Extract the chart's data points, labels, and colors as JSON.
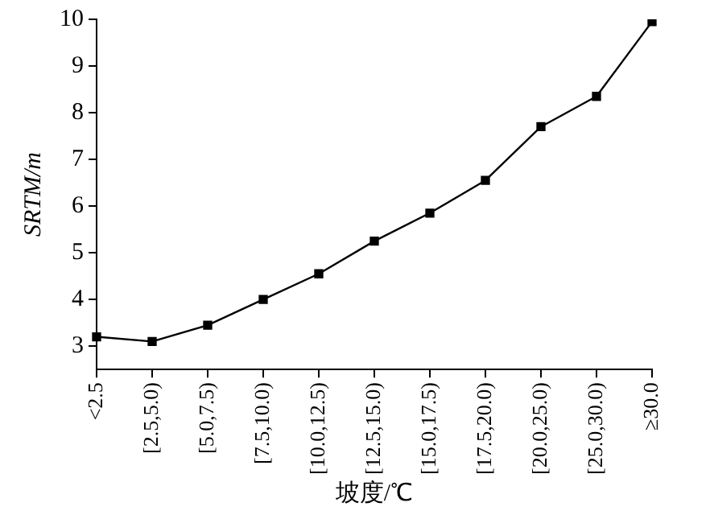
{
  "chart_data": {
    "type": "line",
    "xlabel": "坡度/℃",
    "ylabel": "SRTM/m",
    "categories": [
      "<2.5",
      "[2.5,5.0)",
      "[5.0,7.5)",
      "[7.5,10.0)",
      "[10.0,12.5)",
      "[12.5,15.0)",
      "[15.0,17.5)",
      "[17.5,20.0)",
      "[20.0,25.0)",
      "[25.0,30.0)",
      "≥30.0"
    ],
    "values": [
      3.2,
      3.1,
      3.45,
      4.0,
      4.55,
      5.25,
      5.85,
      6.55,
      7.7,
      8.35,
      9.95
    ],
    "color": "#000000",
    "marker": "square",
    "line_style": "solid",
    "grid": false,
    "legend": false,
    "ylim": [
      2.5,
      10
    ],
    "yticks": [
      3,
      4,
      5,
      6,
      7,
      8,
      9,
      10
    ]
  }
}
